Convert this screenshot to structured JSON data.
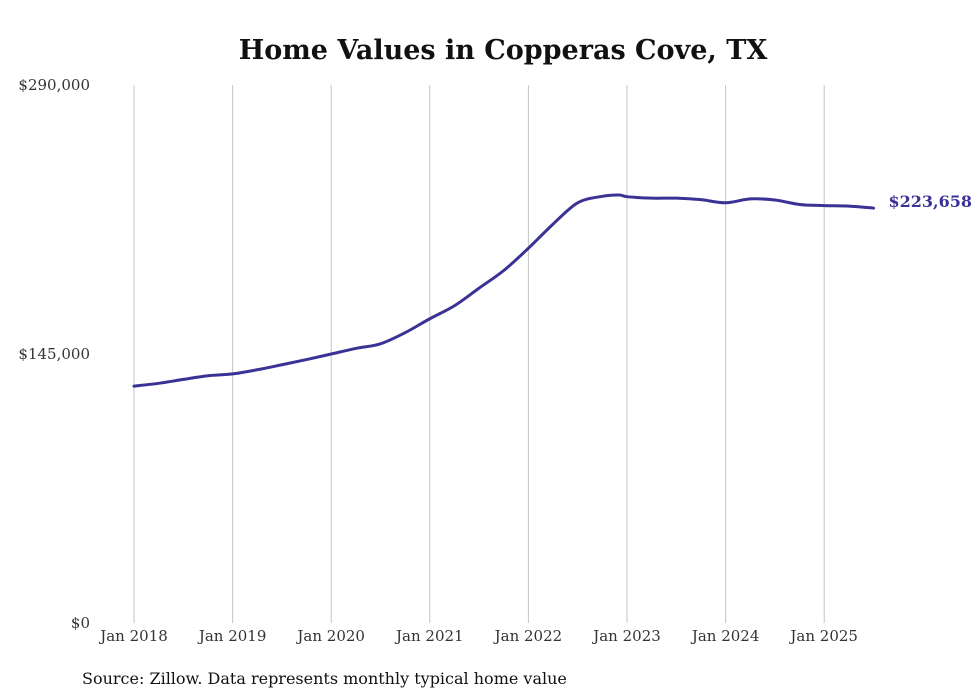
{
  "chart_data": {
    "type": "line",
    "title": "Home Values in Copperas Cove, TX",
    "xlabel": "",
    "ylabel": "",
    "ylim": [
      0,
      290000
    ],
    "y_ticks": [
      {
        "value": 0,
        "label": "$0"
      },
      {
        "value": 145000,
        "label": "$145,000"
      },
      {
        "value": 290000,
        "label": "$290,000"
      }
    ],
    "x_ticks": [
      {
        "value": 2018,
        "label": "Jan 2018"
      },
      {
        "value": 2019,
        "label": "Jan 2019"
      },
      {
        "value": 2020,
        "label": "Jan 2020"
      },
      {
        "value": 2021,
        "label": "Jan 2021"
      },
      {
        "value": 2022,
        "label": "Jan 2022"
      },
      {
        "value": 2023,
        "label": "Jan 2023"
      },
      {
        "value": 2024,
        "label": "Jan 2024"
      },
      {
        "value": 2025,
        "label": "Jan 2025"
      }
    ],
    "xlim": [
      2018,
      2025.5
    ],
    "grid": "vertical",
    "series": [
      {
        "name": "Typical home value",
        "color": "#3b3296",
        "x": [
          2018.0,
          2018.25,
          2018.5,
          2018.75,
          2019.0,
          2019.25,
          2019.5,
          2019.75,
          2020.0,
          2020.25,
          2020.5,
          2020.75,
          2021.0,
          2021.25,
          2021.5,
          2021.75,
          2022.0,
          2022.25,
          2022.5,
          2022.75,
          2022.92,
          2023.0,
          2023.25,
          2023.5,
          2023.75,
          2024.0,
          2024.25,
          2024.5,
          2024.75,
          2025.0,
          2025.25,
          2025.5
        ],
        "values": [
          127700,
          129200,
          131300,
          133300,
          134300,
          136500,
          139200,
          142000,
          145000,
          148000,
          150500,
          156500,
          164000,
          171000,
          180500,
          190000,
          202000,
          215000,
          226500,
          230000,
          230700,
          229800,
          229000,
          229000,
          228200,
          226500,
          228600,
          228000,
          225600,
          225000,
          224700,
          223658
        ]
      }
    ],
    "end_label": "$223,658",
    "source": "Source: Zillow. Data represents monthly typical home value"
  }
}
